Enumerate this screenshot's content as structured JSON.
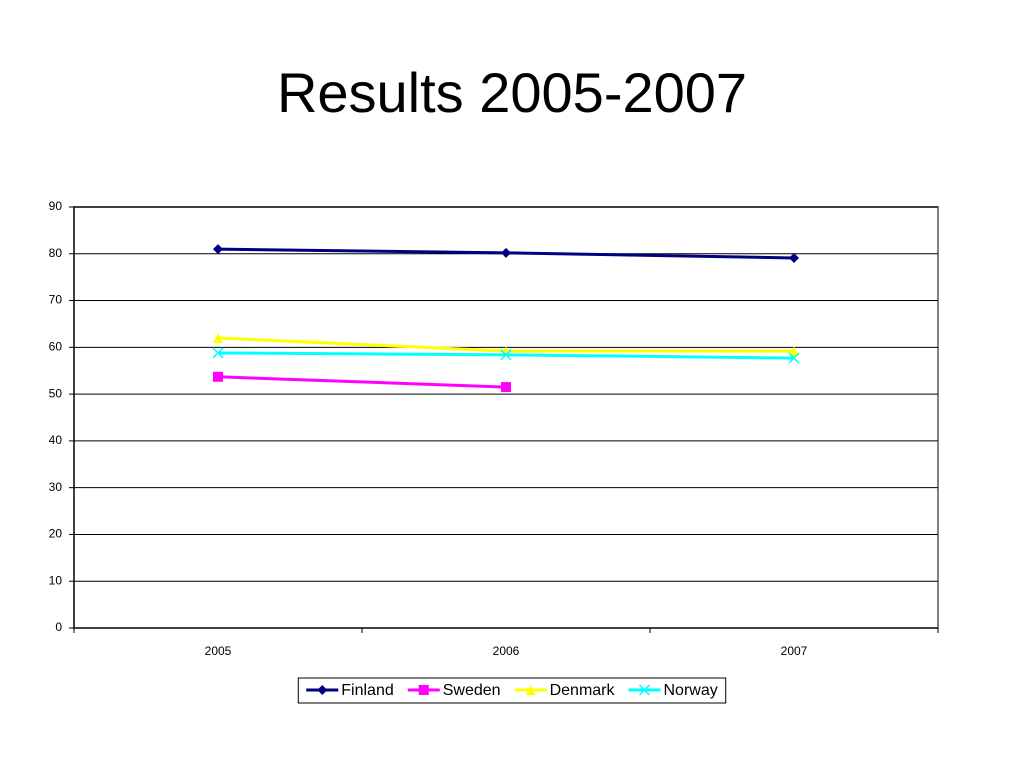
{
  "chart_data": {
    "type": "line",
    "title": "Results 2005-2007",
    "categories": [
      "2005",
      "2006",
      "2007"
    ],
    "series": [
      {
        "name": "Finland",
        "color": "#000080",
        "marker": "diamond",
        "values": [
          81.0,
          80.2,
          79.1
        ]
      },
      {
        "name": "Sweden",
        "color": "#ff00ff",
        "marker": "square",
        "values": [
          53.7,
          51.5,
          null
        ]
      },
      {
        "name": "Denmark",
        "color": "#ffff00",
        "marker": "triangle",
        "values": [
          62.0,
          59.2,
          59.2
        ]
      },
      {
        "name": "Norway",
        "color": "#00ffff",
        "marker": "x",
        "values": [
          58.8,
          58.4,
          57.7
        ]
      }
    ],
    "ylim": [
      0,
      90
    ],
    "yticks": [
      0,
      10,
      20,
      30,
      40,
      50,
      60,
      70,
      80,
      90
    ],
    "grid": true,
    "legend": "bottom"
  }
}
